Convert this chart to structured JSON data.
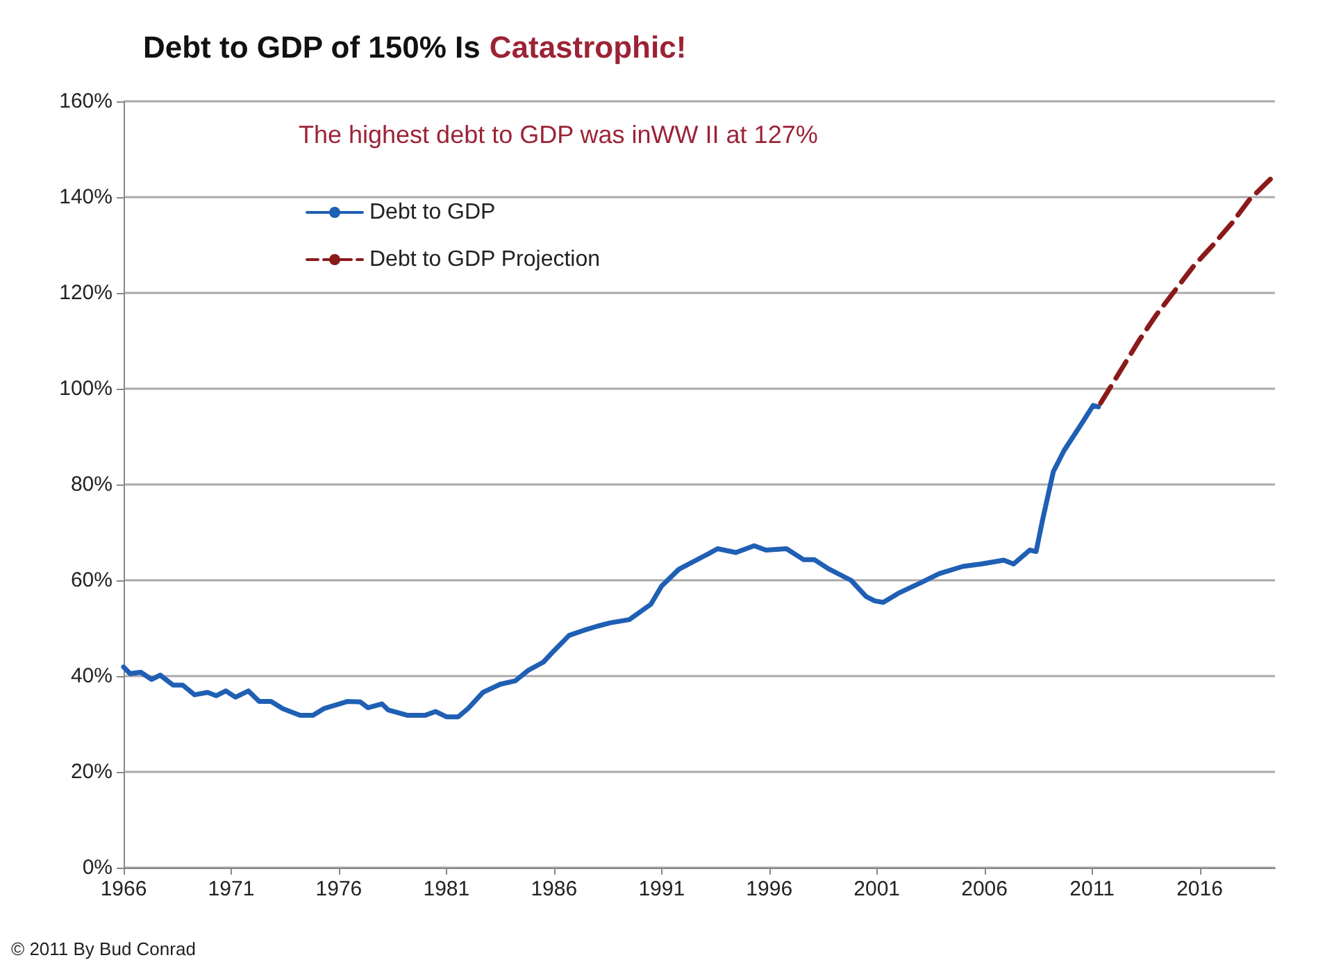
{
  "chart_data": {
    "type": "line",
    "title": "Debt to GDP of 150% Is Catastrophic!",
    "annotations": [
      "The highest debt to GDP was inWW II at 127%",
      "© 2011 By Bud Conrad"
    ],
    "series": [
      {
        "name": "Debt to GDP",
        "color": "#1f5fb4",
        "line_style": "solid",
        "x": [
          1966.0,
          1966.3,
          1966.8,
          1967.3,
          1967.7,
          1968.3,
          1968.75,
          1969.3,
          1969.9,
          1970.3,
          1970.75,
          1971.2,
          1971.8,
          1972.3,
          1972.85,
          1973.4,
          1974.2,
          1974.8,
          1975.3,
          1976.4,
          1977.0,
          1977.35,
          1978.0,
          1978.3,
          1979.2,
          1980.0,
          1980.5,
          1981.0,
          1981.55,
          1982.0,
          1982.7,
          1983.5,
          1984.2,
          1984.8,
          1985.5,
          1986.0,
          1986.7,
          1987.35,
          1988.0,
          1988.6,
          1989.5,
          1990.5,
          1991.0,
          1991.8,
          1993.2,
          1993.6,
          1994.45,
          1995.3,
          1995.85,
          1996.8,
          1997.6,
          1998.1,
          1998.75,
          1999.8,
          2000.5,
          2000.9,
          2001.3,
          2002.0,
          2003.05,
          2003.9,
          2005.0,
          2005.85,
          2006.9,
          2007.35,
          2008.1,
          2008.4,
          2008.7,
          2009.2,
          2009.7,
          2010.6,
          2011.05,
          2011.3
        ],
        "values": [
          41.9,
          40.5,
          40.8,
          39.3,
          40.2,
          38.1,
          38.1,
          36.1,
          36.6,
          35.9,
          36.9,
          35.6,
          36.9,
          34.7,
          34.7,
          33.2,
          31.8,
          31.8,
          33.2,
          34.7,
          34.6,
          33.4,
          34.2,
          32.9,
          31.8,
          31.8,
          32.6,
          31.5,
          31.5,
          33.2,
          36.6,
          38.3,
          39.0,
          41.2,
          42.9,
          45.3,
          48.5,
          49.5,
          50.4,
          51.1,
          51.8,
          55.0,
          58.8,
          62.3,
          65.6,
          66.6,
          65.8,
          67.2,
          66.3,
          66.6,
          64.3,
          64.3,
          62.4,
          60.0,
          56.6,
          55.7,
          55.4,
          57.3,
          59.5,
          61.4,
          62.9,
          63.4,
          64.2,
          63.4,
          66.3,
          66.0,
          72.6,
          82.7,
          87.1,
          93.3,
          96.5,
          96.2
        ]
      },
      {
        "name": "Debt to GDP Projection",
        "color": "#8b1a1a",
        "line_style": "dashed",
        "x": [
          2011.4,
          2013.2,
          2014.0,
          2014.9,
          2015.7,
          2016.6,
          2017.5,
          2018.3,
          2019.5
        ],
        "values": [
          97.0,
          110.2,
          115.5,
          120.8,
          125.5,
          129.9,
          134.6,
          139.4,
          144.7
        ]
      }
    ],
    "xlim": [
      1966,
      2019.5
    ],
    "xticks": [
      1966,
      1971,
      1976,
      1981,
      1986,
      1991,
      1996,
      2001,
      2006,
      2011,
      2016
    ],
    "ylim": [
      0,
      160
    ],
    "yticks": [
      {
        "value": 0,
        "label": "0%"
      },
      {
        "value": 20,
        "label": "20%"
      },
      {
        "value": 40,
        "label": "40%"
      },
      {
        "value": 60,
        "label": "60%"
      },
      {
        "value": 80,
        "label": "80%"
      },
      {
        "value": 100,
        "label": "100%"
      },
      {
        "value": 120,
        "label": "120%"
      },
      {
        "value": 140,
        "label": "140%"
      },
      {
        "value": 160,
        "label": "160%"
      }
    ],
    "grid": "y",
    "legend": "top left",
    "marker": "none"
  }
}
